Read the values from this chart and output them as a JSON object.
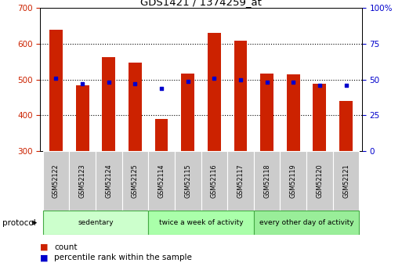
{
  "title": "GDS1421 / 1374259_at",
  "samples": [
    "GSM52122",
    "GSM52123",
    "GSM52124",
    "GSM52125",
    "GSM52114",
    "GSM52115",
    "GSM52116",
    "GSM52117",
    "GSM52118",
    "GSM52119",
    "GSM52120",
    "GSM52121"
  ],
  "counts": [
    640,
    485,
    563,
    547,
    390,
    517,
    630,
    608,
    517,
    515,
    488,
    440
  ],
  "percentile_ranks": [
    51,
    47,
    48,
    47,
    44,
    49,
    51,
    50,
    48,
    48,
    46,
    46
  ],
  "ylim_left": [
    300,
    700
  ],
  "ylim_right": [
    0,
    100
  ],
  "yticks_left": [
    300,
    400,
    500,
    600,
    700
  ],
  "yticks_right": [
    0,
    25,
    50,
    75,
    100
  ],
  "ytick_right_labels": [
    "0",
    "25",
    "50",
    "75",
    "100%"
  ],
  "bar_color": "#cc2200",
  "dot_color": "#0000cc",
  "grid_lines": [
    400,
    500,
    600
  ],
  "protocol_groups": [
    {
      "label": "sedentary",
      "start": 0,
      "end": 4
    },
    {
      "label": "twice a week of activity",
      "start": 4,
      "end": 8
    },
    {
      "label": "every other day of activity",
      "start": 8,
      "end": 12
    }
  ],
  "group_colors": [
    "#ccffcc",
    "#aaffaa",
    "#99ee99"
  ],
  "group_border_color": "#44aa44",
  "tick_bg": "#cccccc",
  "protocol_label": "protocol",
  "legend_count_label": "count",
  "legend_pct_label": "percentile rank within the sample",
  "bar_width": 0.5
}
